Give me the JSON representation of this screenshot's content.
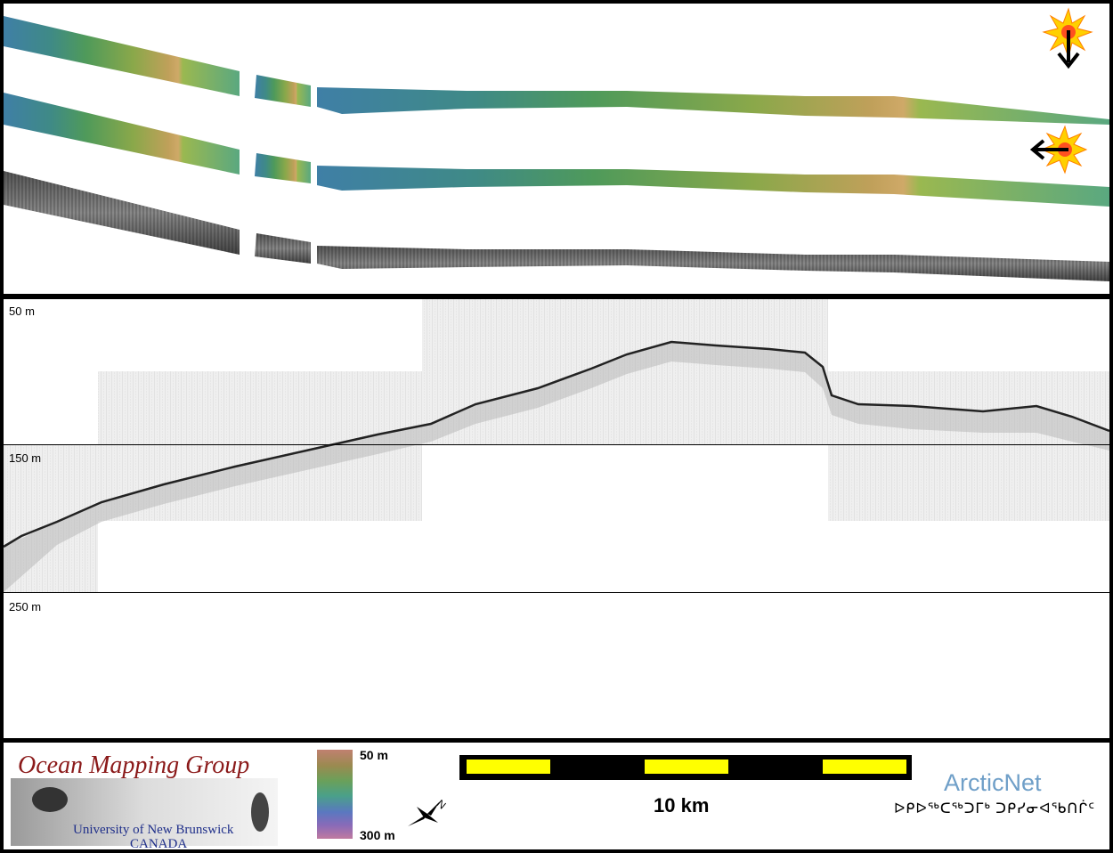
{
  "profile": {
    "depth_labels": [
      "50 m",
      "150 m",
      "250 m"
    ]
  },
  "legend": {
    "logo_title": "Ocean Mapping Group",
    "logo_university": "University of New Brunswick",
    "logo_country": "CANADA",
    "colorbar_top": "50 m",
    "colorbar_bottom": "300 m",
    "scale_label": "10 km",
    "north_label": "N",
    "partner_name": "ArcticNet",
    "partner_syllabics": "ᐅᑭᐅᖅᑕᖅᑐᒥᒃ ᑐᑭᓯᓂᐊᖃᑎᒌᑦ"
  },
  "colors": {
    "bathy_deep": "#3a6f9a",
    "bathy_mid": "#7aa84a",
    "bathy_shallow": "#c09a5a",
    "scale_yellow": "#ffff00",
    "sun": "#ffb000"
  }
}
